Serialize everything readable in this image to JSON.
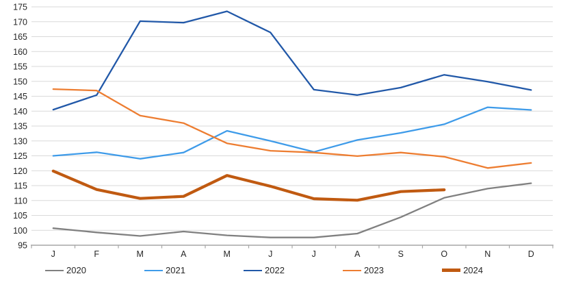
{
  "chart_data": {
    "type": "line",
    "title": "",
    "xlabel": "",
    "ylabel": "",
    "categories": [
      "J",
      "F",
      "M",
      "A",
      "M",
      "J",
      "J",
      "A",
      "S",
      "O",
      "N",
      "D"
    ],
    "ylim": [
      95,
      175
    ],
    "y_ticks": [
      175,
      170,
      165,
      160,
      155,
      150,
      145,
      140,
      135,
      130,
      125,
      120,
      115,
      110,
      105,
      100,
      95
    ],
    "grid": true,
    "legend_position": "bottom",
    "series": [
      {
        "name": "2020",
        "color": "#808080",
        "stroke_width": 2.3,
        "values": [
          100.7,
          99.3,
          98.1,
          99.6,
          98.3,
          97.6,
          97.6,
          98.9,
          104.4,
          110.9,
          114.0,
          115.8
        ]
      },
      {
        "name": "2021",
        "color": "#3E9BE9",
        "stroke_width": 2.3,
        "values": [
          125.0,
          126.2,
          124.0,
          126.1,
          133.4,
          130.0,
          126.3,
          130.3,
          132.7,
          135.6,
          141.3,
          140.4
        ]
      },
      {
        "name": "2022",
        "color": "#2158A8",
        "stroke_width": 2.3,
        "values": [
          140.5,
          145.4,
          170.2,
          169.7,
          173.5,
          166.4,
          147.2,
          145.4,
          147.9,
          152.2,
          149.9,
          147.1
        ]
      },
      {
        "name": "2023",
        "color": "#ED7D31",
        "stroke_width": 2.3,
        "values": [
          147.4,
          146.9,
          138.5,
          136.0,
          129.2,
          126.7,
          126.1,
          124.9,
          126.1,
          124.7,
          120.9,
          122.6
        ]
      },
      {
        "name": "2024",
        "color": "#C05A11",
        "stroke_width": 4.2,
        "values": [
          119.9,
          113.7,
          110.7,
          111.4,
          118.4,
          114.8,
          110.6,
          110.1,
          113.0,
          113.6
        ]
      }
    ],
    "axis_color": "#A6A6A6",
    "gridline_color": "#D9D9D9",
    "text_color": "#262626"
  }
}
